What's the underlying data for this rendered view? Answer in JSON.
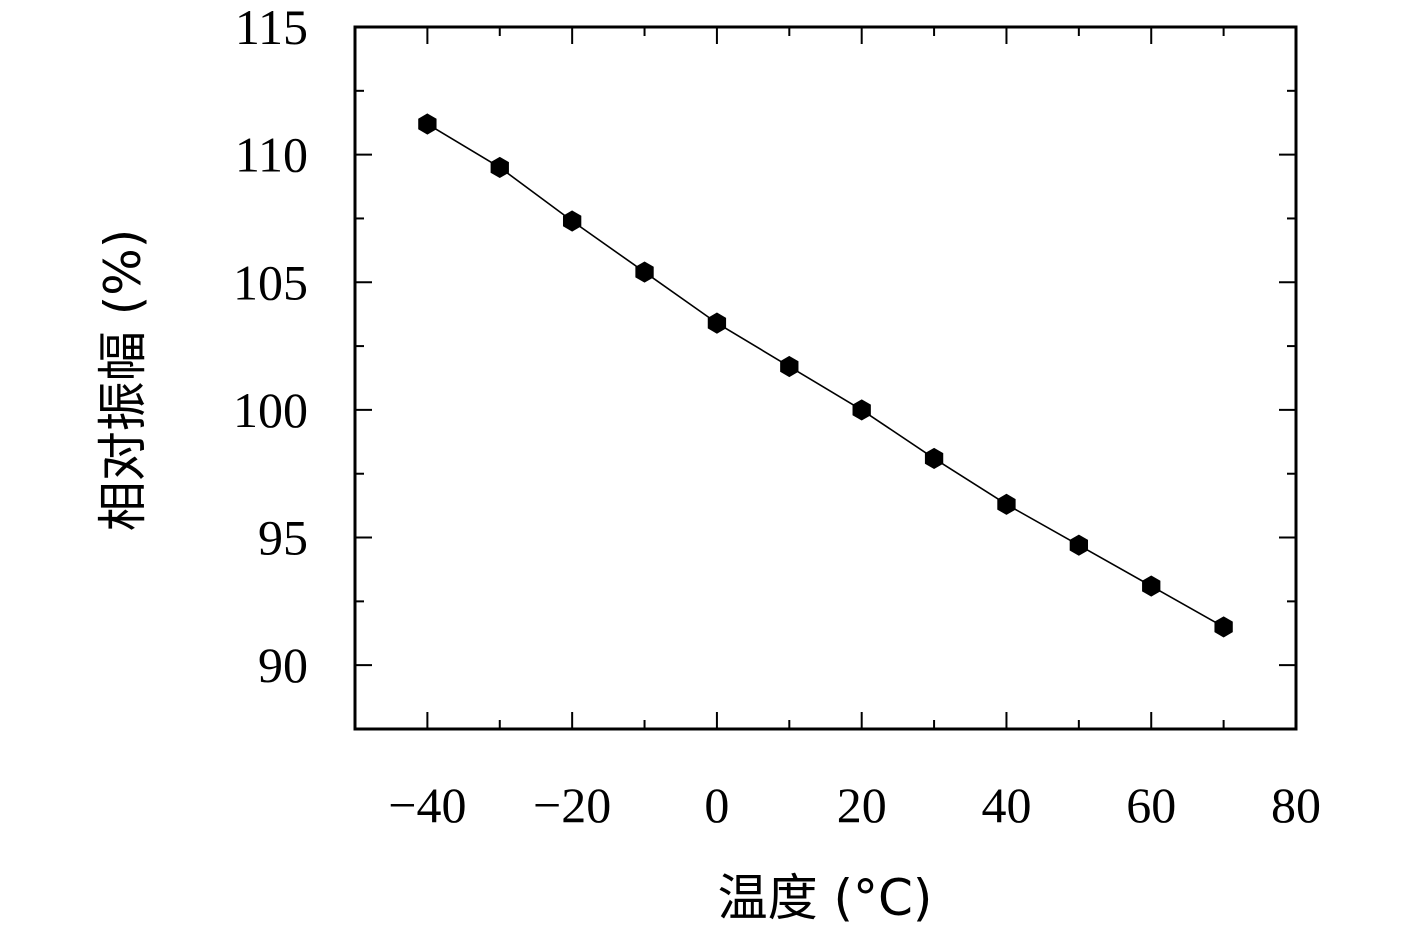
{
  "chart_data": {
    "type": "line",
    "title": "",
    "xlabel": "温度 (°C)",
    "ylabel": "相对振幅 (%)",
    "xlim": [
      -50,
      80
    ],
    "ylim": [
      87.5,
      115
    ],
    "x_ticks": [
      -40,
      -20,
      0,
      20,
      40,
      60,
      80
    ],
    "x_tick_labels": [
      "−40",
      "−20",
      "0",
      "20",
      "40",
      "60",
      "80"
    ],
    "y_ticks": [
      90,
      95,
      100,
      105,
      110,
      115
    ],
    "y_tick_labels": [
      "90",
      "95",
      "100",
      "105",
      "110",
      "115"
    ],
    "grid": false,
    "legend": "none",
    "marker": "hexagon",
    "color": "#000000",
    "series": [
      {
        "x": [
          -40,
          -30,
          -20,
          -10,
          0,
          10,
          20,
          30,
          40,
          50,
          60,
          70
        ],
        "y": [
          111.2,
          109.5,
          107.4,
          105.4,
          103.4,
          101.7,
          100.0,
          98.1,
          96.3,
          94.7,
          93.1,
          91.5
        ]
      }
    ]
  }
}
